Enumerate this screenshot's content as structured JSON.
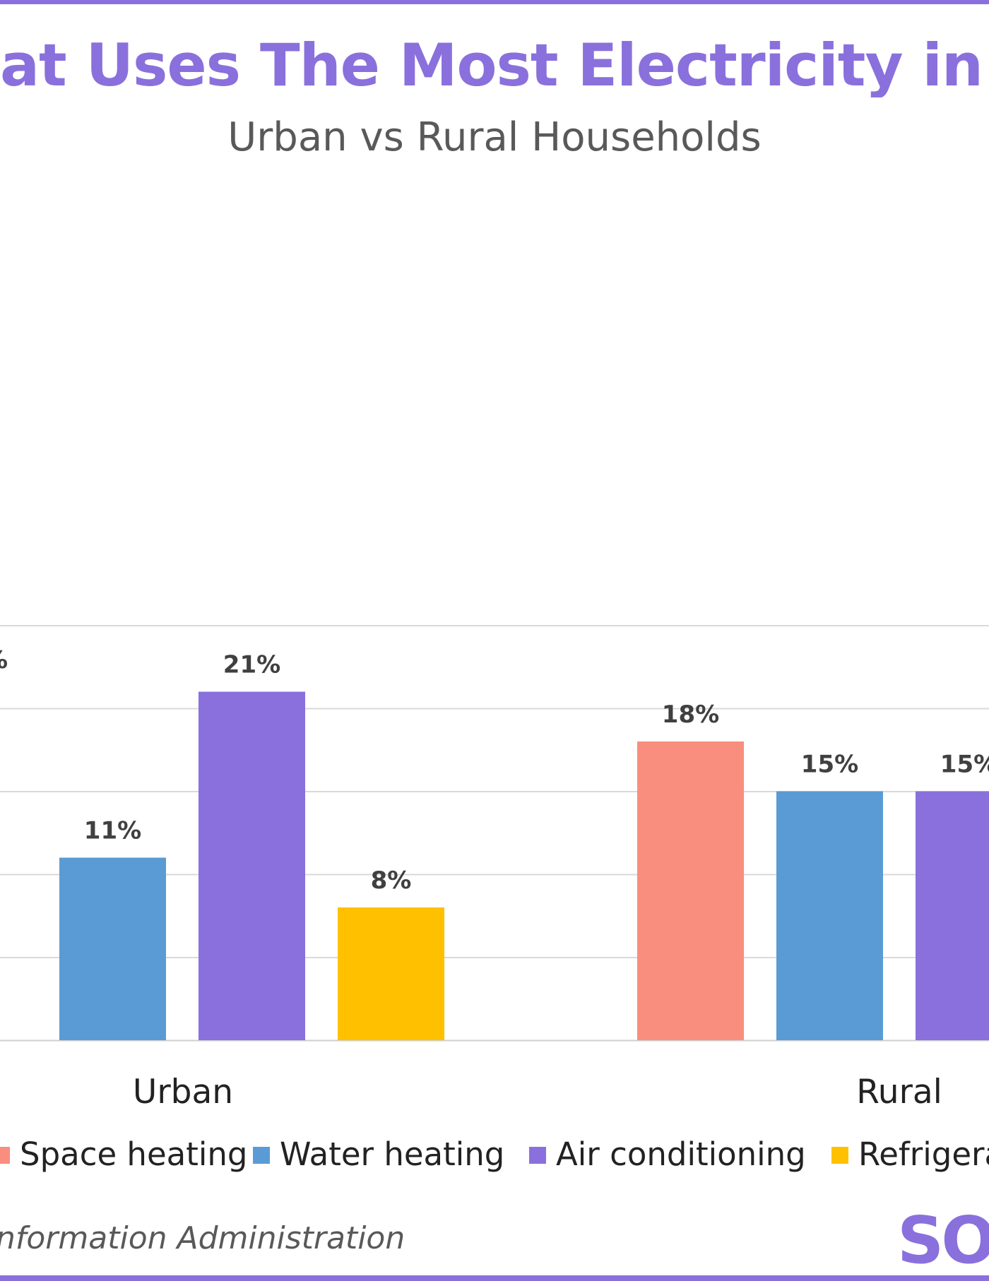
{
  "colors": {
    "accent": "#8a70dc",
    "space_heating": "#f98e7e",
    "water_heating": "#5b9bd5",
    "air_conditioning": "#8a70dc",
    "refrigeration": "#ffc000",
    "gridline": "#d9d9d9",
    "label": "#404040"
  },
  "header": {
    "title": "at Uses The Most Electricity in a Hon",
    "subtitle": "Urban vs Rural Households"
  },
  "legend": {
    "items": [
      {
        "label": "Space heating",
        "color": "#f98e7e"
      },
      {
        "label": "Water heating",
        "color": "#5b9bd5"
      },
      {
        "label": "Air conditioning",
        "color": "#8a70dc"
      },
      {
        "label": "Refrigera",
        "color": "#ffc000"
      }
    ]
  },
  "footer": {
    "source": "nformation Administration",
    "logo_text": "SO"
  },
  "chart_data": {
    "type": "bar",
    "categories": [
      "Urban",
      "Rural"
    ],
    "series": [
      {
        "name": "Space heating",
        "values": [
          null,
          18
        ],
        "labels": [
          "",
          "18%"
        ]
      },
      {
        "name": "Water heating",
        "values": [
          11,
          15
        ],
        "labels": [
          "11%",
          "15%"
        ]
      },
      {
        "name": "Air conditioning",
        "values": [
          21,
          15
        ],
        "labels": [
          "21%",
          "15%"
        ]
      },
      {
        "name": "Refrigera",
        "values": [
          8,
          null
        ],
        "labels": [
          "8%",
          ""
        ]
      }
    ],
    "value_format": "percent",
    "grid": true,
    "legend_position": "bottom",
    "title": "at Uses The Most Electricity in a Hon",
    "subtitle": "Urban vs Rural Households"
  }
}
